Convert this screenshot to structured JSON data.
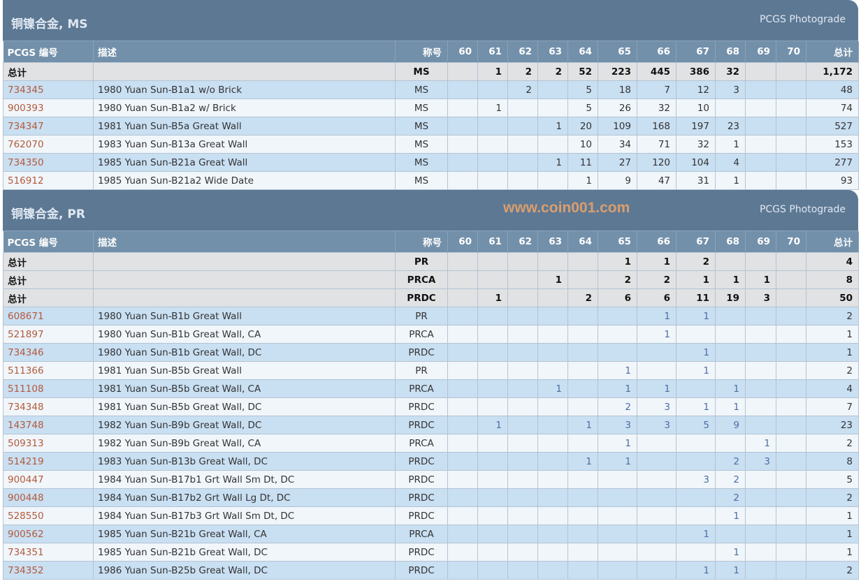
{
  "columns": [
    "PCGS 编号",
    "描述",
    "称号",
    "60",
    "61",
    "62",
    "63",
    "64",
    "65",
    "66",
    "67",
    "68",
    "69",
    "70",
    "总计"
  ],
  "watermark": "www.coin001.com",
  "sections": [
    {
      "title": "铜镍合金, MS",
      "photograde": "PCGS Photograde",
      "totals": [
        [
          "总计",
          "",
          "MS",
          "",
          "1",
          "2",
          "2",
          "52",
          "223",
          "445",
          "386",
          "32",
          "",
          "",
          "1,172"
        ]
      ],
      "rows": [
        [
          "734345",
          "1980 Yuan Sun-B1a1 w/o Brick",
          "MS",
          "",
          "",
          "2",
          "",
          "5",
          "18",
          "7",
          "12",
          "3",
          "",
          "",
          "48"
        ],
        [
          "900393",
          "1980 Yuan Sun-B1a2 w/ Brick",
          "MS",
          "",
          "1",
          "",
          "",
          "5",
          "26",
          "32",
          "10",
          "",
          "",
          "",
          "74"
        ],
        [
          "734347",
          "1981 Yuan Sun-B5a Great Wall",
          "MS",
          "",
          "",
          "",
          "1",
          "20",
          "109",
          "168",
          "197",
          "23",
          "",
          "",
          "527"
        ],
        [
          "762070",
          "1983 Yuan Sun-B13a Great Wall",
          "MS",
          "",
          "",
          "",
          "",
          "10",
          "34",
          "71",
          "32",
          "1",
          "",
          "",
          "153"
        ],
        [
          "734350",
          "1985 Yuan Sun-B21a Great Wall",
          "MS",
          "",
          "",
          "",
          "1",
          "11",
          "27",
          "120",
          "104",
          "4",
          "",
          "",
          "277"
        ],
        [
          "516912",
          "1985 Yuan Sun-B21a2 Wide Date",
          "MS",
          "",
          "",
          "",
          "",
          "1",
          "9",
          "47",
          "31",
          "1",
          "",
          "",
          "93"
        ]
      ]
    },
    {
      "title": "铜镍合金, PR",
      "photograde": "PCGS Photograde",
      "totals": [
        [
          "总计",
          "",
          "PR",
          "",
          "",
          "",
          "",
          "",
          "1",
          "1",
          "2",
          "",
          "",
          "",
          "4"
        ],
        [
          "总计",
          "",
          "PRCA",
          "",
          "",
          "",
          "1",
          "",
          "2",
          "2",
          "1",
          "1",
          "1",
          "",
          "8"
        ],
        [
          "总计",
          "",
          "PRDC",
          "",
          "1",
          "",
          "",
          "2",
          "6",
          "6",
          "11",
          "19",
          "3",
          "",
          "50"
        ]
      ],
      "rows": [
        [
          "608671",
          "1980 Yuan Sun-B1b Great Wall",
          "PR",
          "",
          "",
          "",
          "",
          "",
          "",
          "1",
          "1",
          "",
          "",
          "",
          "2"
        ],
        [
          "521897",
          "1980 Yuan Sun-B1b Great Wall, CA",
          "PRCA",
          "",
          "",
          "",
          "",
          "",
          "",
          "1",
          "",
          "",
          "",
          "",
          "1"
        ],
        [
          "734346",
          "1980 Yuan Sun-B1b Great Wall, DC",
          "PRDC",
          "",
          "",
          "",
          "",
          "",
          "",
          "",
          "1",
          "",
          "",
          "",
          "1"
        ],
        [
          "511366",
          "1981 Yuan Sun-B5b Great Wall",
          "PR",
          "",
          "",
          "",
          "",
          "",
          "1",
          "",
          "1",
          "",
          "",
          "",
          "2"
        ],
        [
          "511108",
          "1981 Yuan Sun-B5b Great Wall, CA",
          "PRCA",
          "",
          "",
          "",
          "1",
          "",
          "1",
          "1",
          "",
          "1",
          "",
          "",
          "4"
        ],
        [
          "734348",
          "1981 Yuan Sun-B5b Great Wall, DC",
          "PRDC",
          "",
          "",
          "",
          "",
          "",
          "2",
          "3",
          "1",
          "1",
          "",
          "",
          "7"
        ],
        [
          "143748",
          "1982 Yuan Sun-B9b Great Wall, DC",
          "PRDC",
          "",
          "1",
          "",
          "",
          "1",
          "3",
          "3",
          "5",
          "9",
          "",
          "",
          "23"
        ],
        [
          "509313",
          "1982 Yuan Sun-B9b Great Wall, CA",
          "PRCA",
          "",
          "",
          "",
          "",
          "",
          "1",
          "",
          "",
          "",
          "1",
          "",
          "2"
        ],
        [
          "514219",
          "1983 Yuan Sun-B13b Great Wall, DC",
          "PRDC",
          "",
          "",
          "",
          "",
          "1",
          "1",
          "",
          "",
          "2",
          "3",
          "",
          "8"
        ],
        [
          "900447",
          "1984 Yuan Sun-B17b1 Grt Wall Sm Dt, DC",
          "PRDC",
          "",
          "",
          "",
          "",
          "",
          "",
          "",
          "3",
          "2",
          "",
          "",
          "5"
        ],
        [
          "900448",
          "1984 Yuan Sun-B17b2 Grt Wall Lg Dt, DC",
          "PRDC",
          "",
          "",
          "",
          "",
          "",
          "",
          "",
          "",
          "2",
          "",
          "",
          "2"
        ],
        [
          "528550",
          "1984 Yuan Sun-B17b3 Grt Wall Sm Dt, DC",
          "PRDC",
          "",
          "",
          "",
          "",
          "",
          "",
          "",
          "",
          "1",
          "",
          "",
          "1"
        ],
        [
          "900562",
          "1985 Yuan Sun-B21b Great Wall, CA",
          "PRCA",
          "",
          "",
          "",
          "",
          "",
          "",
          "",
          "1",
          "",
          "",
          "",
          "1"
        ],
        [
          "734351",
          "1985 Yuan Sun-B21b Great Wall, DC",
          "PRDC",
          "",
          "",
          "",
          "",
          "",
          "",
          "",
          "",
          "1",
          "",
          "",
          "1"
        ],
        [
          "734352",
          "1986 Yuan Sun-B25b Great Wall, DC",
          "PRDC",
          "",
          "",
          "",
          "",
          "",
          "",
          "",
          "1",
          "1",
          "",
          "",
          "2"
        ]
      ]
    }
  ]
}
